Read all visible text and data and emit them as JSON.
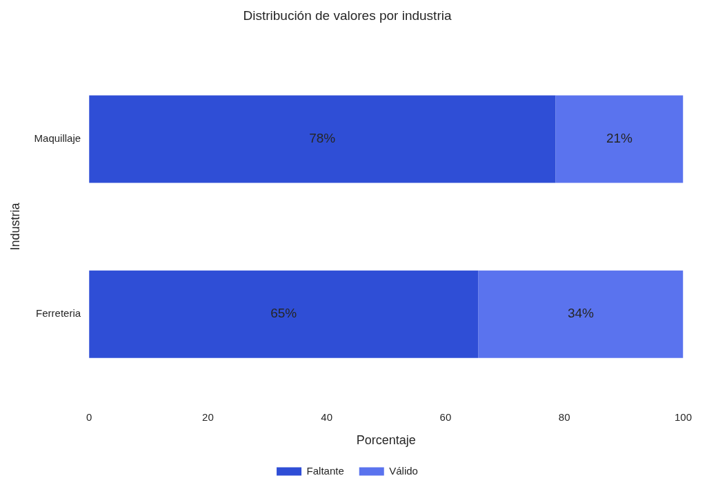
{
  "chart_data": {
    "type": "bar",
    "title": "Distribución de valores por industria",
    "xlabel": "Porcentaje",
    "ylabel": "Industria",
    "orientation": "horizontal",
    "stacked": true,
    "categories": [
      "Maquillaje",
      "Ferreteria"
    ],
    "series": [
      {
        "name": "Faltante",
        "color": "#2f4ed6",
        "values": [
          78.5,
          65.5
        ],
        "value_labels": [
          "78%",
          "65%"
        ]
      },
      {
        "name": "Válido",
        "color": "#5a73ee",
        "values": [
          21.5,
          34.5
        ],
        "value_labels": [
          "21%",
          "34%"
        ]
      }
    ],
    "xlim": [
      0,
      100
    ],
    "xticks": [
      0,
      20,
      40,
      60,
      80,
      100
    ],
    "grid": false,
    "legend": "bottom"
  }
}
